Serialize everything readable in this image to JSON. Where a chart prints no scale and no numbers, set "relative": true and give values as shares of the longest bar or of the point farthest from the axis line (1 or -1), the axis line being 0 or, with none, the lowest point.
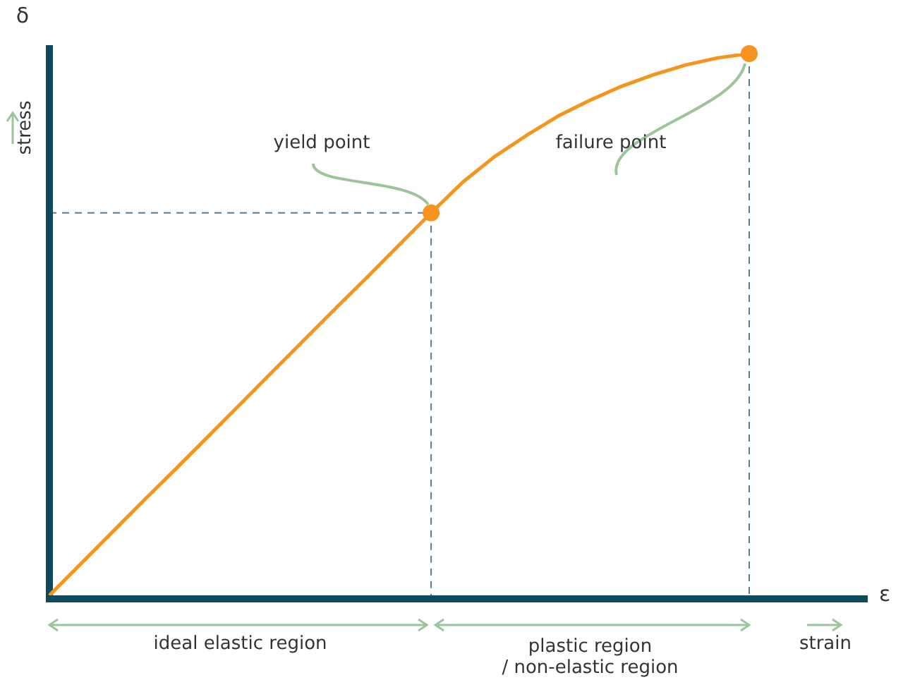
{
  "chart_data": {
    "type": "line",
    "relative": true,
    "xlabel": "strain",
    "ylabel": "stress",
    "categories": [
      null,
      null,
      null,
      null,
      null,
      null,
      null,
      null,
      null,
      null,
      null,
      null,
      null,
      null,
      null,
      null,
      null,
      null,
      null,
      null,
      null,
      null,
      null
    ],
    "series": [
      {
        "color": "#f7941d",
        "values": [
          0,
          0.059,
          0.118,
          0.177,
          0.235,
          0.294,
          0.353,
          0.412,
          0.471,
          0.53,
          0.588,
          0.647,
          0.706,
          0.763,
          0.81,
          0.849,
          0.885,
          0.914,
          0.94,
          0.961,
          0.979,
          0.992,
          1
        ]
      }
    ],
    "ref_lines": [
      {
        "axis": "y",
        "value": 0.706,
        "line_style": "dashed",
        "color": "#5b7c95"
      }
    ],
    "legend": false,
    "tick_labels": false,
    "annotations": [
      "yield point",
      "failure point",
      "ideal elastic region",
      "plastic region\n/ non-elastic region",
      "δ",
      "ε"
    ]
  }
}
